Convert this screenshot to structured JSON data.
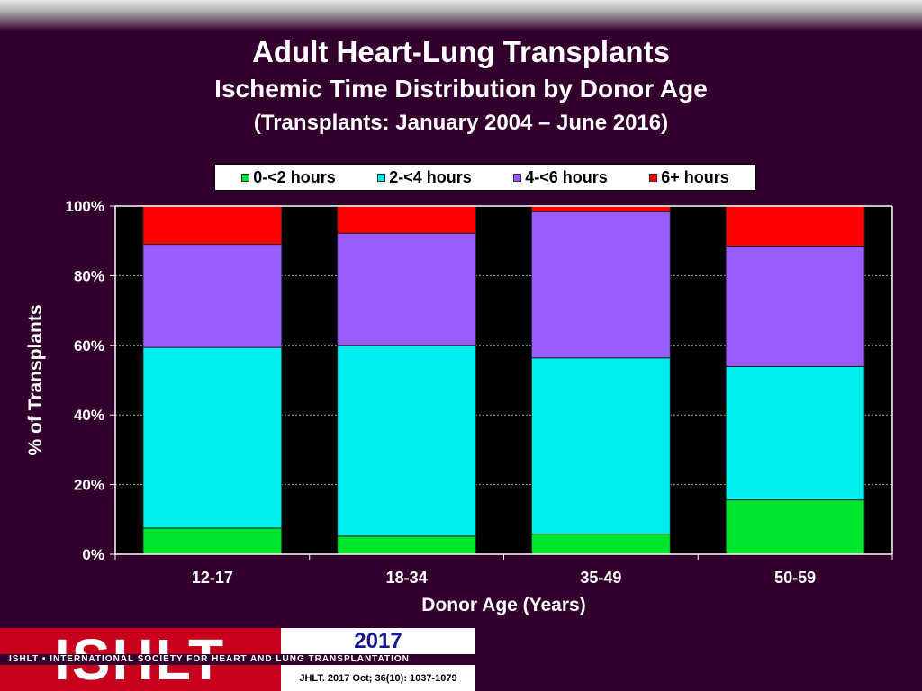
{
  "header": {
    "title": "Adult Heart-Lung Transplants",
    "subtitle": "Ischemic Time Distribution by Donor Age",
    "period": "(Transplants: January 2004 – June 2016)"
  },
  "footer": {
    "logo_text": "ISHLT",
    "org_name": "ISHLT • INTERNATIONAL SOCIETY FOR HEART AND LUNG TRANSPLANTATION",
    "year": "2017",
    "citation": "JHLT. 2017 Oct; 36(10): 1037-1079"
  },
  "chart_data": {
    "type": "bar",
    "stacked": true,
    "categories": [
      "12-17",
      "18-34",
      "35-49",
      "50-59"
    ],
    "series": [
      {
        "name": "0-<2 hours",
        "color": "#00e62e",
        "values": [
          7.5,
          5.2,
          5.8,
          15.6
        ]
      },
      {
        "name": "2-<4 hours",
        "color": "#00eeee",
        "values": [
          51.9,
          54.8,
          50.6,
          38.3
        ]
      },
      {
        "name": "4-<6 hours",
        "color": "#9a5cff",
        "values": [
          29.6,
          32.2,
          42.0,
          34.6
        ]
      },
      {
        "name": "6+ hours",
        "color": "#ff0000",
        "values": [
          11.0,
          7.8,
          1.6,
          11.5
        ]
      }
    ],
    "xlabel": "Donor Age (Years)",
    "ylabel": "% of Transplants",
    "ylim": [
      0,
      100
    ],
    "yticks": [
      "0%",
      "20%",
      "40%",
      "60%",
      "80%",
      "100%"
    ],
    "grid": true,
    "legend_position": "top"
  }
}
